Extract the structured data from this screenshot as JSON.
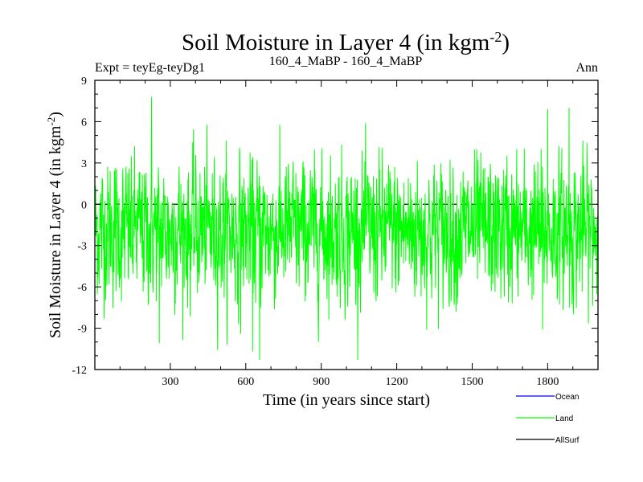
{
  "chart_data": {
    "type": "line",
    "title": "Soil Moisture in Layer 4 (in kgm",
    "title_sup": "-2",
    "title_close": ")",
    "subtitle_left": "Expt = teyEg-teyDg1",
    "subtitle_center": "160_4_MaBP - 160_4_MaBP",
    "subtitle_right": "Ann",
    "xlabel": "Time (in years since start)",
    "ylabel": "Soil Moisture in Layer 4 (in kgm",
    "ylabel_sup": "-2",
    "ylabel_close": ")",
    "xlim": [
      0,
      2000
    ],
    "ylim": [
      -12,
      9
    ],
    "xticks": [
      300,
      600,
      900,
      1200,
      1500,
      1800
    ],
    "xtick_labels": [
      "300",
      "600",
      "900",
      "1200",
      "1500",
      "1800"
    ],
    "yticks": [
      -12,
      -9,
      -6,
      -3,
      0,
      3,
      6,
      9
    ],
    "ytick_labels": [
      "-12",
      "-9",
      "-6",
      "-3",
      "0",
      "3",
      "6",
      "9"
    ],
    "zero_line": 0,
    "series": [
      {
        "name": "Ocean",
        "color": "#0000ff",
        "values": []
      },
      {
        "name": "Land",
        "color": "#00ff00",
        "values": []
      },
      {
        "name": "AllSurf",
        "color": "#000000",
        "values": []
      }
    ],
    "land_series_spec": {
      "years": 2000,
      "mean": -1.9,
      "sd": 2.4,
      "min": -11.3,
      "max": 7.8,
      "extremes": [
        {
          "x": 225,
          "y": 7.8
        },
        {
          "x": 655,
          "y": -11.3
        },
        {
          "x": 627,
          "y": -10.7
        },
        {
          "x": 256,
          "y": -10.1
        },
        {
          "x": 1885,
          "y": 7.0
        },
        {
          "x": 1800,
          "y": 6.9
        },
        {
          "x": 580,
          "y": -9.4
        },
        {
          "x": 1780,
          "y": -9.1
        }
      ]
    }
  }
}
